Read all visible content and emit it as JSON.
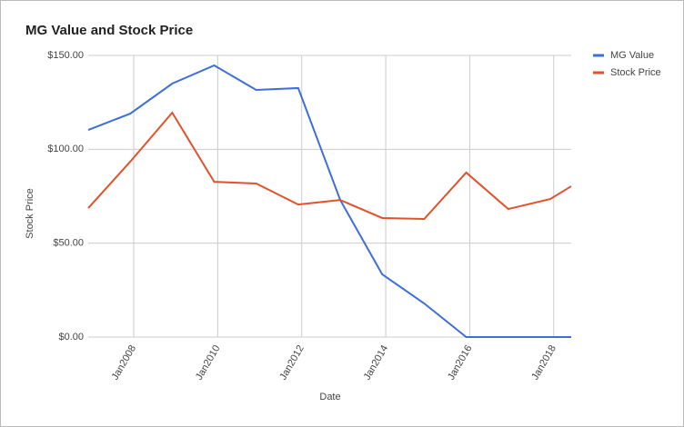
{
  "chart_data": {
    "type": "line",
    "title": "MG Value and Stock Price",
    "x_label": "Date",
    "y_label": "Stock Price",
    "x": [
      "2006-12",
      "2007-12",
      "2008-12",
      "2009-12",
      "2010-12",
      "2011-12",
      "2012-12",
      "2013-12",
      "2014-12",
      "2015-12",
      "2016-12",
      "2017-12",
      "2018-06"
    ],
    "series": [
      {
        "name": "MG Value",
        "color": "#3d6fd6",
        "values": [
          110.3,
          119,
          135,
          144.7,
          131.6,
          132.6,
          73,
          33.4,
          17.9,
          0,
          0,
          0,
          0
        ]
      },
      {
        "name": "Stock Price",
        "color": "#e0522c",
        "values": [
          68.7,
          93.4,
          119.5,
          82.7,
          81.8,
          70.6,
          73,
          63.4,
          62.9,
          87.6,
          68.2,
          73.5,
          80.3
        ]
      }
    ],
    "xlim": [
      "2006-12",
      "2018-06"
    ],
    "xticks": [
      {
        "value": "2008-01",
        "label": "Jan2008"
      },
      {
        "value": "2010-01",
        "label": "Jan2010"
      },
      {
        "value": "2012-01",
        "label": "Jan2012"
      },
      {
        "value": "2014-01",
        "label": "Jan2014"
      },
      {
        "value": "2016-01",
        "label": "Jan2016"
      },
      {
        "value": "2018-01",
        "label": "Jan2018"
      }
    ],
    "ylim": [
      0,
      150
    ],
    "yticks": [
      {
        "value": 0,
        "label": "$0.00"
      },
      {
        "value": 50,
        "label": "$50.00"
      },
      {
        "value": 100,
        "label": "$100.00"
      },
      {
        "value": 150,
        "label": "$150.00"
      }
    ],
    "grid": true,
    "legend": "right"
  }
}
